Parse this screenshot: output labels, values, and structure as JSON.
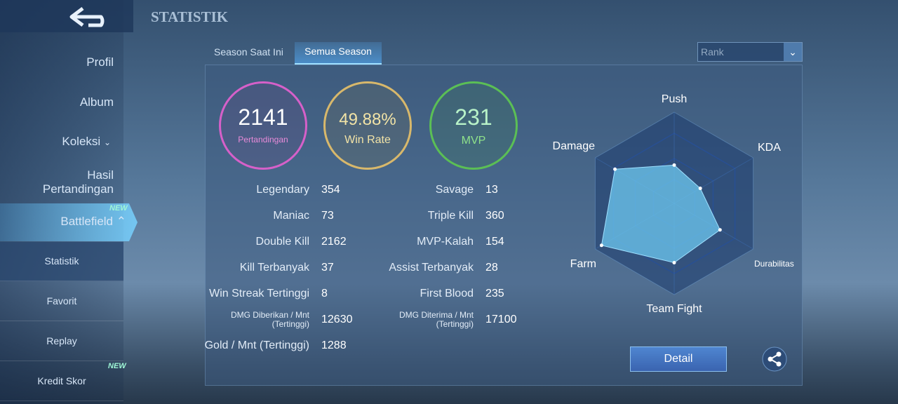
{
  "header": {
    "title": "STATISTIK"
  },
  "sidebar": {
    "items": [
      "Profil",
      "Album",
      "Koleksi",
      "Hasil Pertandingan",
      "Battlefield"
    ],
    "badge": "NEW",
    "subitems": [
      "Statistik",
      "Favorit",
      "Replay",
      "Kredit Skor"
    ]
  },
  "tabs": [
    "Season Saat Ini",
    "Semua Season"
  ],
  "filter": "Rank",
  "summary": [
    {
      "value": 2141,
      "label": "Pertandingan"
    },
    {
      "value": "49.88%",
      "label": "Win Rate"
    },
    {
      "value": 231,
      "label": "MVP"
    }
  ],
  "stats_left": [
    [
      "Legendary",
      354
    ],
    [
      "Maniac",
      73
    ],
    [
      "Double Kill",
      2162
    ],
    [
      "Kill Terbanyak",
      37
    ],
    [
      "Win Streak Tertinggi",
      8
    ],
    [
      "DMG Diberikan / Mnt (Tertinggi)",
      12630
    ],
    [
      "Gold / Mnt (Tertinggi)",
      1288
    ]
  ],
  "stats_right": [
    [
      "Savage",
      13
    ],
    [
      "Triple Kill",
      360
    ],
    [
      "MVP-Kalah",
      154
    ],
    [
      "Assist Terbanyak",
      28
    ],
    [
      "First Blood",
      235
    ],
    [
      "DMG Diterima / Mnt (Tertinggi)",
      17100
    ]
  ],
  "radar": {
    "axes": [
      "Push",
      "KDA",
      "Durabilitas",
      "Team Fight",
      "Farm",
      "Damage"
    ],
    "values": [
      42,
      33,
      58,
      65,
      92,
      75
    ],
    "rlim": [
      0,
      100
    ]
  },
  "detail_button": "Detail"
}
